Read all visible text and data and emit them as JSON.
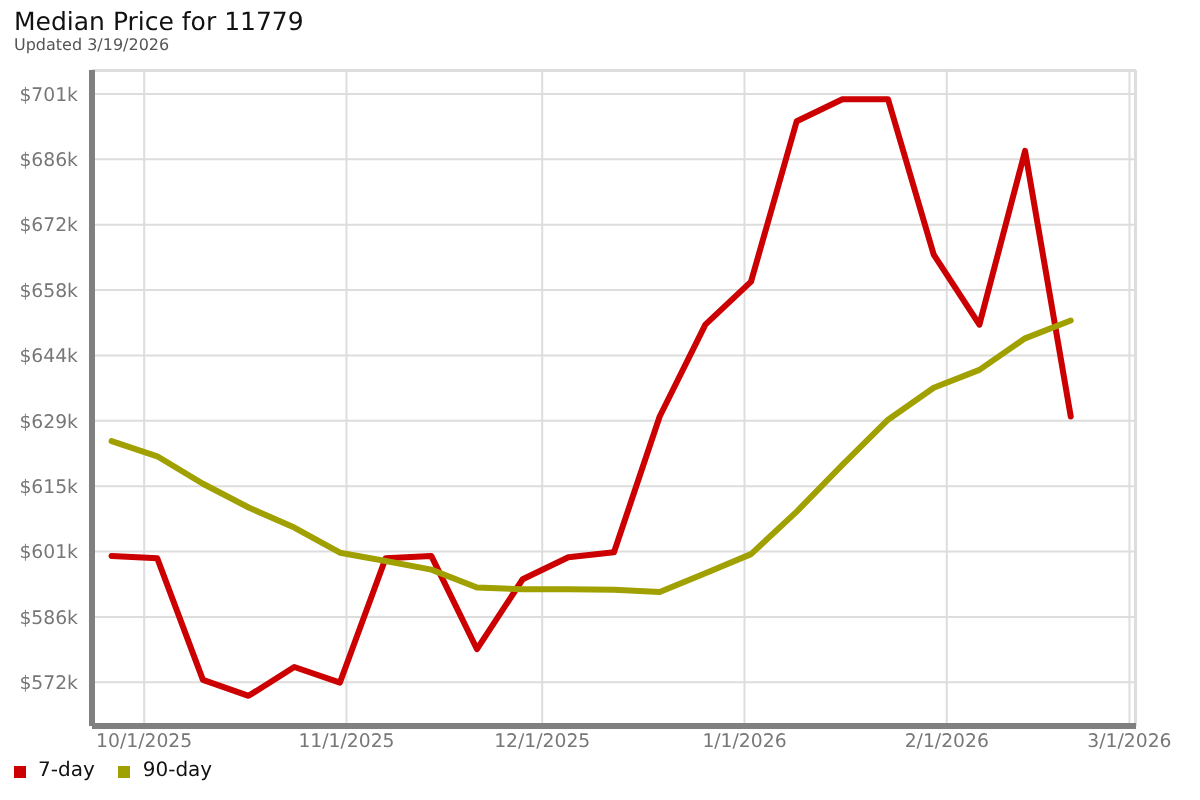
{
  "chart_data": {
    "type": "line",
    "title": "Median Price for 11779",
    "subtitle": "Updated 3/19/2026",
    "x": [
      "2025-09-26",
      "2025-10-03",
      "2025-10-10",
      "2025-10-17",
      "2025-10-24",
      "2025-10-31",
      "2025-11-07",
      "2025-11-14",
      "2025-11-21",
      "2025-11-28",
      "2025-12-05",
      "2025-12-12",
      "2025-12-19",
      "2025-12-26",
      "2026-01-02",
      "2026-01-09",
      "2026-01-16",
      "2026-01-23",
      "2026-01-30",
      "2026-02-06",
      "2026-02-13",
      "2026-02-20"
    ],
    "series": [
      {
        "name": "7-day",
        "color": "#cc0000",
        "values": [
          599.7,
          599.2,
          572.6,
          569.1,
          575.4,
          572.0,
          599.2,
          599.7,
          579.3,
          594.6,
          599.4,
          600.5,
          630.2,
          650.3,
          659.7,
          694.8,
          699.6,
          699.6,
          665.6,
          650.3,
          688.3,
          630.2
        ]
      },
      {
        "name": "90-day",
        "color": "#a0a000",
        "values": [
          624.8,
          621.5,
          615.5,
          610.3,
          605.9,
          600.4,
          598.6,
          596.7,
          592.8,
          592.4,
          592.4,
          592.3,
          591.8,
          595.9,
          600.1,
          609.4,
          619.6,
          629.5,
          636.5,
          640.4,
          647.3,
          651.2
        ]
      }
    ],
    "xlim": [
      "2025-09-23",
      "2026-03-02"
    ],
    "xticks": [
      {
        "value": "2025-10-01",
        "label": "10/1/2025"
      },
      {
        "value": "2025-11-01",
        "label": "11/1/2025"
      },
      {
        "value": "2025-12-01",
        "label": "12/1/2025"
      },
      {
        "value": "2026-01-01",
        "label": "1/1/2026"
      },
      {
        "value": "2026-02-01",
        "label": "2/1/2026"
      },
      {
        "value": "2026-03-01",
        "label": "3/1/2026"
      }
    ],
    "ylim": [
      562.5,
      706
    ],
    "yticks": [
      {
        "value": 572.05,
        "label": "$572k"
      },
      {
        "value": 586.35,
        "label": "$586k"
      },
      {
        "value": 600.65,
        "label": "$601k"
      },
      {
        "value": 614.95,
        "label": "$615k"
      },
      {
        "value": 629.25,
        "label": "$629k"
      },
      {
        "value": 643.55,
        "label": "$644k"
      },
      {
        "value": 657.85,
        "label": "$658k"
      },
      {
        "value": 672.15,
        "label": "$672k"
      },
      {
        "value": 686.45,
        "label": "$686k"
      },
      {
        "value": 700.75,
        "label": "$701k"
      }
    ],
    "grid": true,
    "legend": "bottom left",
    "line_style": "solid"
  }
}
